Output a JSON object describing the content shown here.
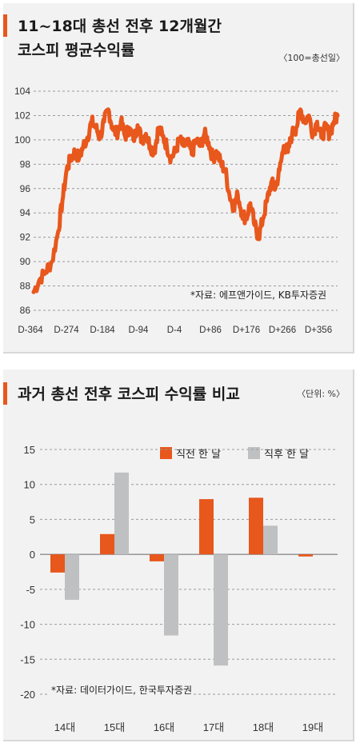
{
  "charts": [
    {
      "title_line1": "11~18대 총선 전후 12개월간",
      "title_line2": "코스피 평균수익률",
      "unit": "〈100=총선일〉",
      "source": "*자료: 에프앤가이드, KB투자증권"
    },
    {
      "title": "과거 총선 전후 코스피 수익률 비교",
      "unit": "〈단위: %〉",
      "source": "*자료: 데이터가이드, 한국투자증권",
      "legend": [
        "직전 한 달",
        "직후 한 달"
      ]
    }
  ],
  "colors": {
    "accent": "#e8571c",
    "gray": "#bfc0c2",
    "grid": "#9a9a9a",
    "panel_bg": "#f2f2f2"
  },
  "chart_data": [
    {
      "type": "line",
      "title": "11~18대 총선 전후 12개월간 코스피 평균수익률",
      "x_tick_labels": [
        "D-364",
        "D-274",
        "D-184",
        "D-94",
        "D-4",
        "D+86",
        "D+176",
        "D+266",
        "D+356"
      ],
      "y_tick_labels": [
        "86",
        "88",
        "90",
        "92",
        "94",
        "96",
        "98",
        "100",
        "102",
        "104"
      ],
      "ylim": [
        86,
        104
      ],
      "xlim": [
        -364,
        364
      ],
      "grid": "horizontal dashed",
      "series": [
        {
          "x": [
            -364,
            -350,
            -335,
            -320,
            -305,
            -295,
            -285,
            -275,
            -265,
            -255,
            -245,
            -235,
            -225,
            -215,
            -205,
            -195,
            -185,
            -175,
            -165,
            -155,
            -145,
            -135,
            -125,
            -115,
            -105,
            -95,
            -85,
            -75,
            -65,
            -55,
            -45,
            -35,
            -25,
            -15,
            -5,
            5,
            15,
            25,
            35,
            45,
            55,
            65,
            75,
            85,
            95,
            105,
            115,
            125,
            135,
            145,
            155,
            165,
            175,
            185,
            195,
            205,
            215,
            225,
            235,
            245,
            255,
            265,
            275,
            285,
            295,
            305,
            315,
            325,
            335,
            345,
            355,
            364
          ],
          "y": [
            87.5,
            88.5,
            89.2,
            90.0,
            92.5,
            95.0,
            97.5,
            98.5,
            99.0,
            98.5,
            99.5,
            100.2,
            101.5,
            101.0,
            100.2,
            101.5,
            102.5,
            101.0,
            100.5,
            101.5,
            100.3,
            101.0,
            100.0,
            101.2,
            100.0,
            100.5,
            99.5,
            99.0,
            101.0,
            100.3,
            99.5,
            98.5,
            99.0,
            100.0,
            99.5,
            99.8,
            98.8,
            100.0,
            99.5,
            100.5,
            99.8,
            98.5,
            99.0,
            98.0,
            97.5,
            95.5,
            94.5,
            95.5,
            94.0,
            93.5,
            94.8,
            93.0,
            92.0,
            93.5,
            95.0,
            96.5,
            96.0,
            97.5,
            99.5,
            99.0,
            100.5,
            101.0,
            102.5,
            101.5,
            102.0,
            100.5,
            101.5,
            100.2,
            101.0,
            100.5,
            101.5,
            102.0
          ]
        }
      ]
    },
    {
      "type": "bar",
      "title": "과거 총선 전후 코스피 수익률 비교",
      "categories": [
        "14대",
        "15대",
        "16대",
        "17대",
        "18대",
        "19대"
      ],
      "series": [
        {
          "name": "직전 한 달",
          "values": [
            -2.6,
            2.9,
            -1.0,
            7.9,
            8.1,
            -0.3
          ]
        },
        {
          "name": "직후 한 달",
          "values": [
            -6.5,
            11.7,
            -11.6,
            -15.9,
            4.1,
            null
          ]
        }
      ],
      "y_tick_labels": [
        "15",
        "10",
        "5",
        "0",
        "-5",
        "-10",
        "-15",
        "-20"
      ],
      "ylim": [
        -20,
        15
      ],
      "legend_position": "top-right"
    }
  ]
}
